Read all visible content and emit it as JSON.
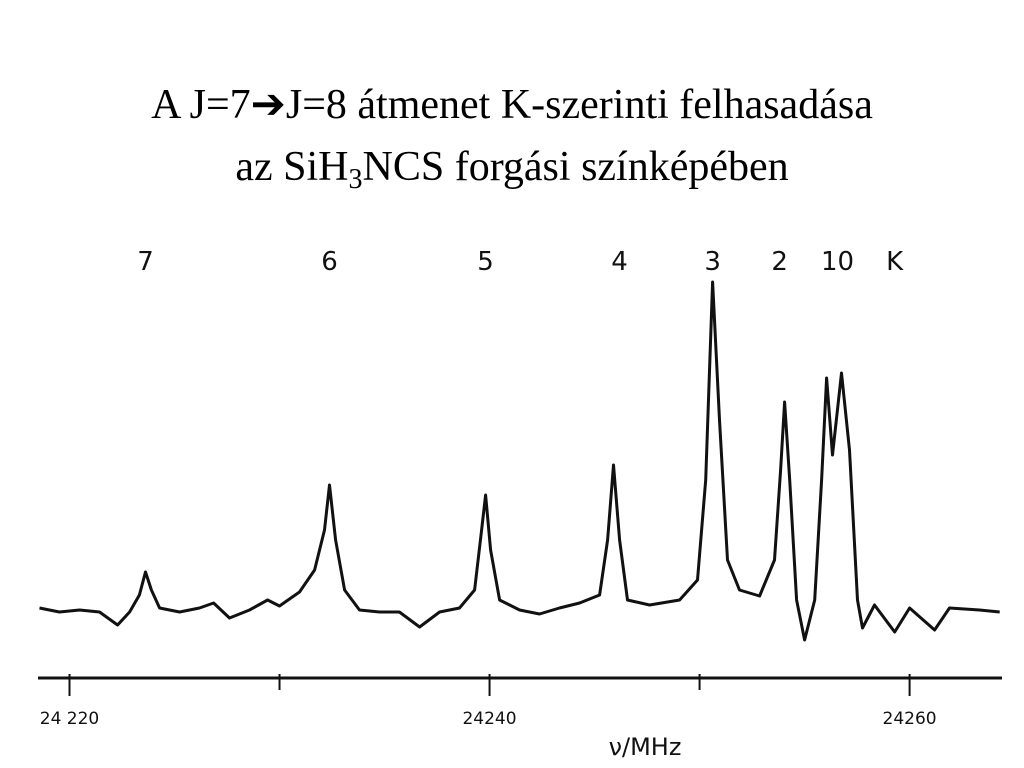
{
  "chart_data": {
    "type": "line",
    "title": "A J=7➔J=8 átmenet K-szerinti felhasadása",
    "subtitle": {
      "before": "az SiH",
      "sub": "3",
      "after": "NCS forgási színképében"
    },
    "x_label": "ν/MHz",
    "color": "#111111",
    "xlim": [
      24218.5,
      24264.4
    ],
    "ylim": [
      -50,
      340
    ],
    "xticks": [
      {
        "value": 24220,
        "label": "24 220"
      },
      24240,
      24260
    ],
    "minor_xticks": [
      24230,
      24250
    ],
    "annotations": [
      {
        "text": "7",
        "x": 24223.62
      },
      {
        "text": "6",
        "x": 24232.38
      },
      {
        "text": "5",
        "x": 24239.81
      },
      {
        "text": "4",
        "x": 24246.19
      },
      {
        "text": "3",
        "x": 24250.62
      },
      {
        "text": "2",
        "x": 24253.81
      },
      {
        "text": "10",
        "x": 24256.57
      },
      {
        "text": "K",
        "x": 24259.29
      }
    ],
    "x": [
      24218.57,
      24219.52,
      24220.48,
      24221.43,
      24222.29,
      24222.86,
      24223.33,
      24223.62,
      24223.9,
      24224.29,
      24225.24,
      24226.19,
      24226.86,
      24227.62,
      24228.57,
      24229.43,
      24230,
      24230.95,
      24231.67,
      24232.14,
      24232.38,
      24232.67,
      24233.1,
      24233.81,
      24234.76,
      24235.71,
      24236.67,
      24237.62,
      24238.57,
      24239.29,
      24239.62,
      24239.81,
      24240.05,
      24240.48,
      24241.43,
      24242.38,
      24243.33,
      24244.29,
      24245.24,
      24245.62,
      24245.9,
      24246.19,
      24246.57,
      24247.62,
      24249.05,
      24249.9,
      24250.29,
      24250.62,
      24250.95,
      24251.33,
      24251.9,
      24252.86,
      24253.57,
      24253.86,
      24254.05,
      24254.29,
      24254.62,
      24255,
      24255.48,
      24255.81,
      24256.05,
      24256.33,
      24256.76,
      24257.14,
      24257.52,
      24257.76,
      24258.33,
      24259.29,
      24260,
      24261.19,
      24261.9,
      24263.33,
      24264.29
    ],
    "values": [
      2,
      -2,
      0,
      -2,
      -15,
      -2,
      15,
      38,
      20,
      2,
      -2,
      2,
      7,
      -8,
      0,
      10,
      4,
      18,
      40,
      80,
      125,
      70,
      20,
      0,
      -2,
      -2,
      -17,
      -2,
      2,
      20,
      80,
      115,
      60,
      10,
      0,
      -4,
      2,
      7,
      15,
      70,
      145,
      70,
      10,
      5,
      10,
      30,
      130,
      328,
      190,
      50,
      20,
      14,
      50,
      140,
      208,
      130,
      10,
      -30,
      10,
      130,
      232,
      155,
      237,
      160,
      10,
      -18,
      5,
      -22,
      2,
      -20,
      2,
      0,
      -2
    ]
  }
}
